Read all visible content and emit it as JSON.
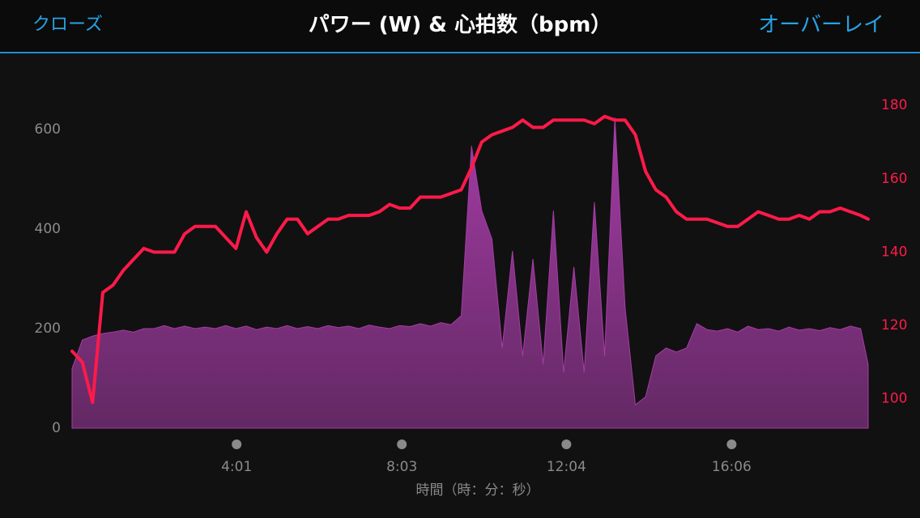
{
  "header": {
    "close": "クローズ",
    "overlay": "オーバーレイ"
  },
  "chart_data": {
    "type": "combo",
    "title": "パワー (W) & 心拍数（bpm）",
    "x_label": "時間（時：分：秒）",
    "x": [
      0,
      15,
      30,
      45,
      60,
      75,
      90,
      105,
      120,
      135,
      150,
      165,
      180,
      195,
      210,
      225,
      240,
      255,
      270,
      285,
      300,
      315,
      330,
      345,
      360,
      375,
      390,
      405,
      420,
      435,
      450,
      465,
      480,
      495,
      510,
      525,
      540,
      555,
      570,
      585,
      600,
      615,
      630,
      645,
      660,
      675,
      690,
      705,
      720,
      735,
      750,
      765,
      780,
      795,
      810,
      825,
      840,
      855,
      870,
      885,
      900,
      915,
      930,
      945,
      960,
      975,
      990,
      1005,
      1020,
      1035,
      1050,
      1065,
      1080,
      1095,
      1110,
      1125,
      1140,
      1155,
      1166
    ],
    "xlim": [
      0,
      1166
    ],
    "xticks": [
      {
        "value": 241,
        "label": "4:01"
      },
      {
        "value": 483,
        "label": "8:03"
      },
      {
        "value": 724,
        "label": "12:04"
      },
      {
        "value": 966,
        "label": "16:06"
      }
    ],
    "ylim": [
      0,
      700
    ],
    "yticks": [
      0,
      200,
      400,
      600
    ],
    "y2lim": [
      92,
      187
    ],
    "y2ticks": [
      100,
      120,
      140,
      160,
      180
    ],
    "y2_color": "#ff1a4a",
    "series": [
      {
        "name": "パワー",
        "type": "area",
        "color": "#a53ca6",
        "values": [
          120,
          177,
          185,
          190,
          193,
          197,
          193,
          200,
          200,
          206,
          200,
          205,
          200,
          203,
          200,
          206,
          200,
          205,
          198,
          203,
          200,
          206,
          200,
          204,
          200,
          206,
          202,
          205,
          200,
          207,
          203,
          200,
          206,
          204,
          210,
          205,
          212,
          208,
          226,
          567,
          437,
          380,
          161,
          356,
          145,
          340,
          128,
          437,
          112,
          324,
          112,
          454,
          145,
          624,
          242,
          47,
          63,
          145,
          161,
          153,
          161,
          210,
          198,
          195,
          200,
          193,
          205,
          198,
          200,
          195,
          203,
          197,
          200,
          196,
          202,
          198,
          205,
          200,
          128
        ]
      },
      {
        "name": "心拍数",
        "type": "line",
        "axis": "y2",
        "color": "#ff1a4a",
        "values": [
          113,
          110,
          99,
          129,
          131,
          135,
          138,
          141,
          140,
          140,
          140,
          145,
          147,
          147,
          147,
          144,
          141,
          151,
          144,
          140,
          145,
          149,
          149,
          145,
          147,
          149,
          149,
          150,
          150,
          150,
          151,
          153,
          152,
          152,
          155,
          155,
          155,
          156,
          157,
          163,
          170,
          172,
          173,
          174,
          176,
          174,
          174,
          176,
          176,
          176,
          176,
          175,
          177,
          176,
          176,
          172,
          162,
          157,
          155,
          151,
          149,
          149,
          149,
          148,
          147,
          147,
          149,
          151,
          150,
          149,
          149,
          150,
          149,
          151,
          151,
          152,
          151,
          150,
          149
        ]
      }
    ]
  }
}
